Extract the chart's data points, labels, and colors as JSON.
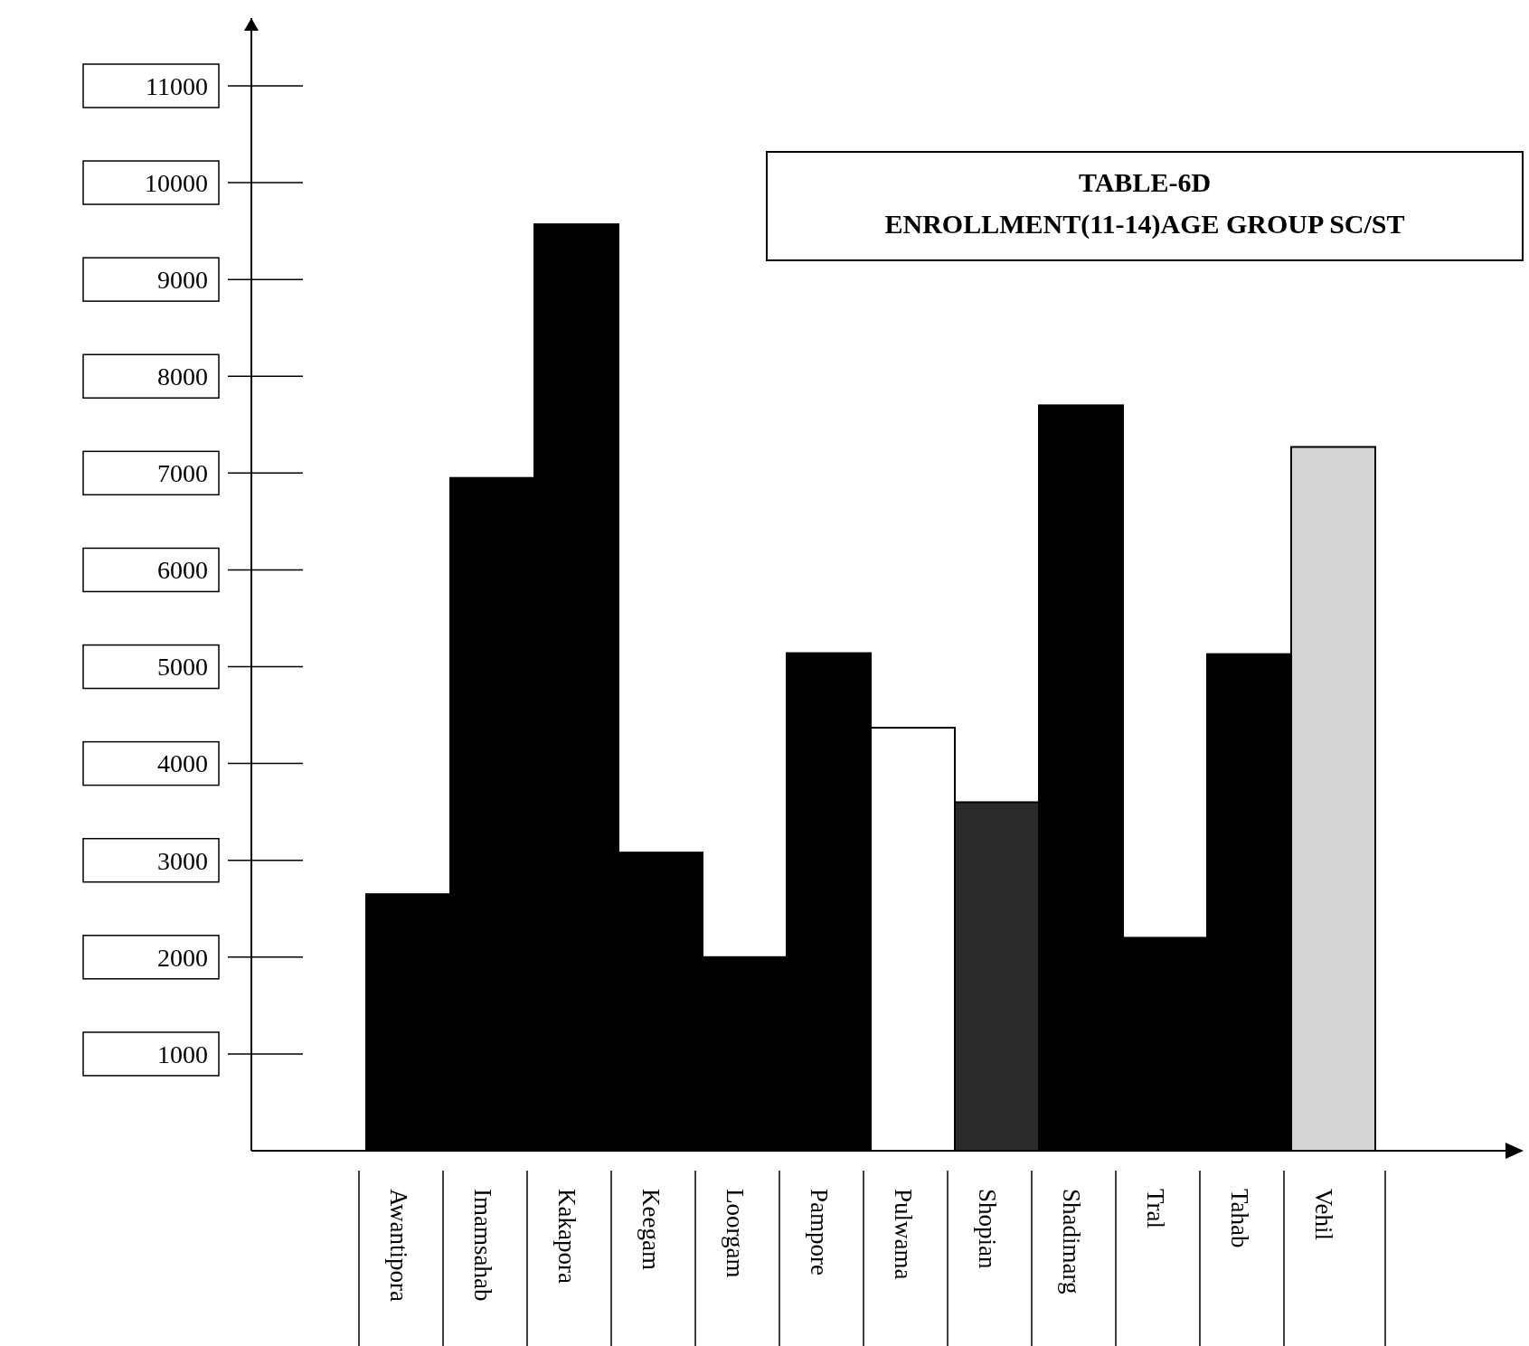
{
  "chart_data": {
    "type": "bar",
    "title": "TABLE-6D",
    "subtitle": "ENROLLMENT(11-14)AGE GROUP SC/ST",
    "categories": [
      "Awantipora",
      "Imamsahab",
      "Kakapora",
      "Keegam",
      "Loorgam",
      "Pampore",
      "Pulwama",
      "Shopian",
      "Shadimarg",
      "Tral",
      "Tahab",
      "Vehil"
    ],
    "values": [
      2650,
      6950,
      9570,
      3080,
      2000,
      5140,
      4370,
      3600,
      7700,
      2200,
      5130,
      7270
    ],
    "colors": [
      "#000000",
      "#000000",
      "#000000",
      "#000000",
      "#000000",
      "#000000",
      "#ffffff",
      "#2a2a2a",
      "#000000",
      "#000000",
      "#000000",
      "#d4d4d4"
    ],
    "ylim": [
      0,
      11700
    ],
    "yticks": [
      1000,
      2000,
      3000,
      4000,
      5000,
      6000,
      7000,
      8000,
      9000,
      10000,
      11000
    ],
    "grid": false
  }
}
